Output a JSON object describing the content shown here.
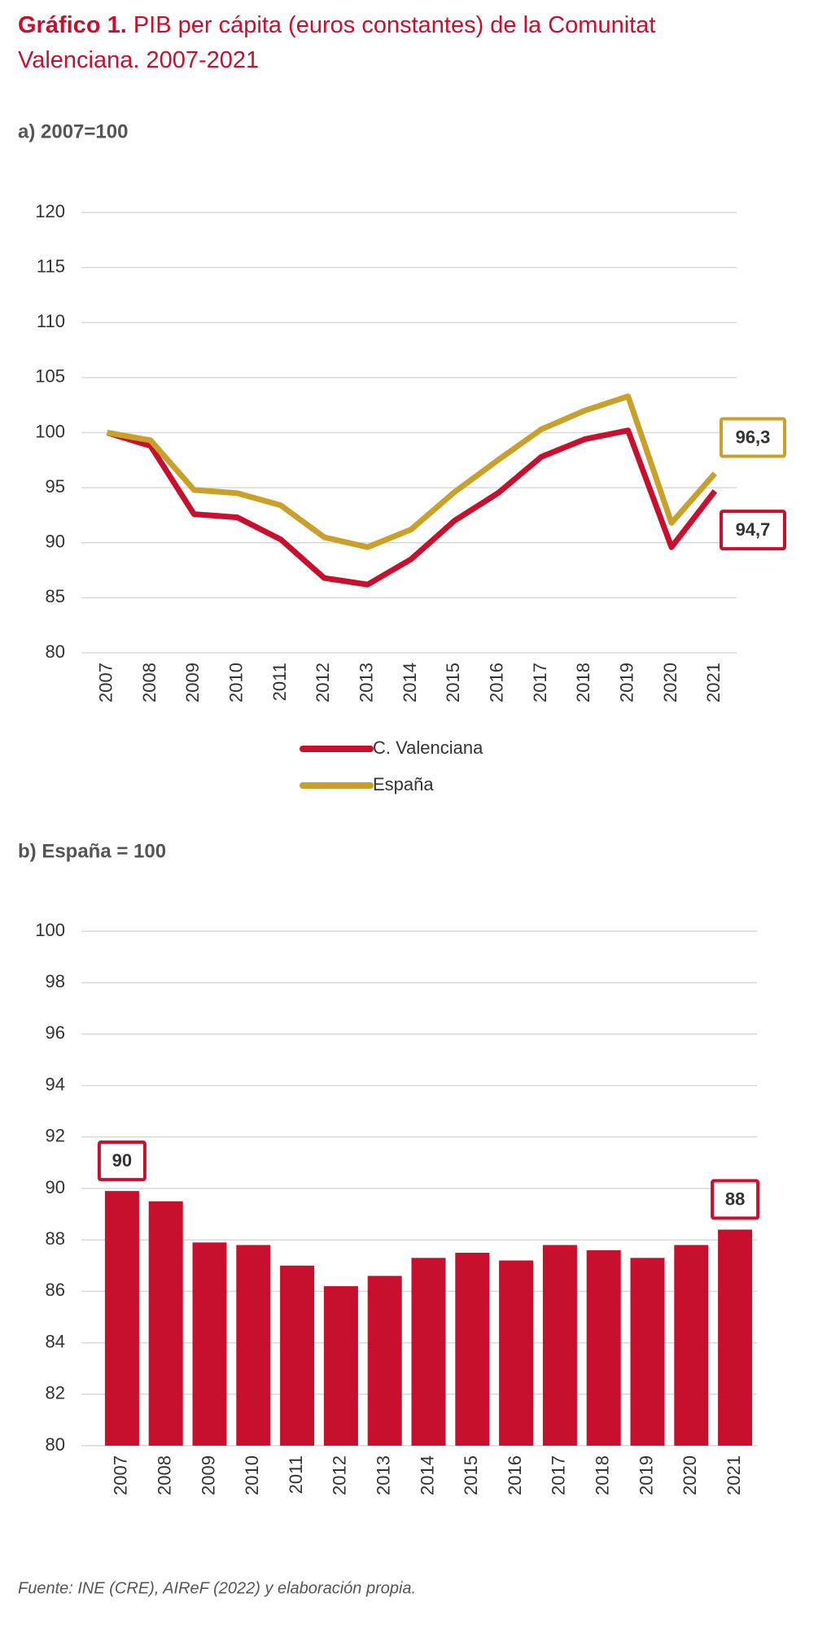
{
  "title_label": "Gráfico 1.",
  "title": "PIB per cápita (euros constantes) de la Comunitat Valenciana. 2007-2021",
  "source": "Fuente: INE (CRE), AIReF (2022) y elaboración propia.",
  "chart_data": [
    {
      "type": "line",
      "title": "a) 2007=100",
      "categories": [
        "2007",
        "2008",
        "2009",
        "2010",
        "2011",
        "2012",
        "2013",
        "2014",
        "2015",
        "2016",
        "2017",
        "2018",
        "2019",
        "2020",
        "2021"
      ],
      "series": [
        {
          "name": "C. Valenciana",
          "color": "#c8102e",
          "values": [
            100,
            98.8,
            92.6,
            92.3,
            90.3,
            86.8,
            86.2,
            88.5,
            92.0,
            94.5,
            97.8,
            99.4,
            100.2,
            89.6,
            94.7
          ],
          "value_labels": [
            null,
            null,
            null,
            null,
            null,
            null,
            null,
            null,
            null,
            null,
            null,
            null,
            null,
            null,
            "94,7"
          ]
        },
        {
          "name": "España",
          "color": "#c9a02a",
          "values": [
            100,
            99.3,
            94.8,
            94.5,
            93.4,
            90.5,
            89.6,
            91.2,
            94.6,
            97.5,
            100.3,
            102.0,
            103.3,
            91.8,
            96.3
          ],
          "value_labels": [
            null,
            null,
            null,
            null,
            null,
            null,
            null,
            null,
            null,
            null,
            null,
            null,
            null,
            null,
            "96,3"
          ]
        }
      ],
      "ylim": [
        80,
        120
      ],
      "yticks": [
        80,
        85,
        90,
        95,
        100,
        105,
        110,
        115,
        120
      ],
      "grid": true
    },
    {
      "type": "bar",
      "title": "b) España = 100",
      "categories": [
        "2007",
        "2008",
        "2009",
        "2010",
        "2011",
        "2012",
        "2013",
        "2014",
        "2015",
        "2016",
        "2017",
        "2018",
        "2019",
        "2020",
        "2021"
      ],
      "values": [
        89.9,
        89.5,
        87.9,
        87.8,
        87.0,
        86.2,
        86.6,
        87.3,
        87.5,
        87.2,
        87.8,
        87.6,
        87.3,
        87.8,
        88.4
      ],
      "value_labels": [
        "90",
        null,
        null,
        null,
        null,
        null,
        null,
        null,
        null,
        null,
        null,
        null,
        null,
        null,
        "88"
      ],
      "color": "#c8102e",
      "ylim": [
        80,
        100
      ],
      "yticks": [
        80,
        82,
        84,
        86,
        88,
        90,
        92,
        94,
        96,
        98,
        100
      ],
      "grid": true
    }
  ]
}
